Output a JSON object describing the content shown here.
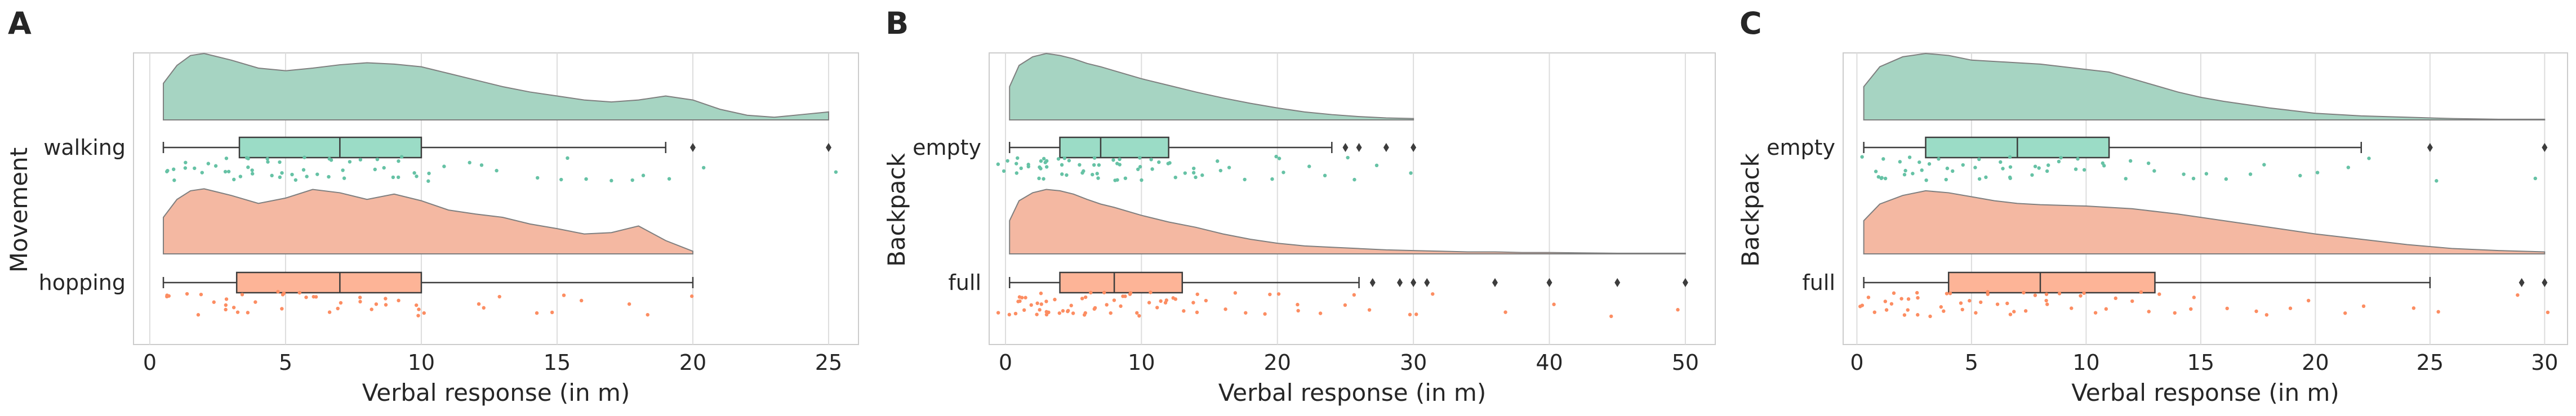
{
  "colors": {
    "group_1": "#66c2a5",
    "group_1_box": "#9bdcc6",
    "group_1_violin": "#a6d4c2",
    "group_2": "#fc8d62",
    "group_2_box": "#fdb497",
    "group_2_violin": "#f4b8a2",
    "grid": "#dddddd",
    "frame": "#cccccc",
    "whisker": "#3d3d3d"
  },
  "chart_data": [
    {
      "type": "raincloud",
      "panel_label": "A",
      "ylabel": "Movement",
      "xlabel": "Verbal response (in m)",
      "xlim": [
        -0.6,
        26.1
      ],
      "xticks": [
        0,
        5,
        10,
        15,
        20,
        25
      ],
      "categories": [
        "walking",
        "hopping"
      ],
      "series": [
        {
          "name": "walking",
          "color_key": "group_1",
          "box": {
            "whisker_low": 0.5,
            "q1": 3.3,
            "median": 7,
            "q3": 10,
            "whisker_high": 19
          },
          "outliers": [
            20,
            25
          ],
          "density": {
            "x": [
              0.5,
              1,
              1.5,
              2,
              3,
              4,
              5,
              6,
              7,
              8,
              9,
              10,
              11,
              12,
              13,
              14,
              15,
              16,
              17,
              18,
              19,
              20,
              21,
              22,
              23,
              24,
              25
            ],
            "y": [
              0.55,
              0.82,
              0.97,
              1.0,
              0.9,
              0.78,
              0.74,
              0.78,
              0.83,
              0.86,
              0.84,
              0.8,
              0.7,
              0.6,
              0.5,
              0.42,
              0.36,
              0.3,
              0.27,
              0.3,
              0.36,
              0.3,
              0.16,
              0.07,
              0.04,
              0.08,
              0.12
            ]
          },
          "points": [
            0.5,
            0.7,
            1,
            1,
            1.2,
            1.5,
            1.5,
            2,
            2,
            2.2,
            2.5,
            2.5,
            3,
            3,
            3,
            3.2,
            3.5,
            3.5,
            4,
            4,
            4,
            4.3,
            4.5,
            4.5,
            5,
            5,
            5,
            5.5,
            5.5,
            6,
            6,
            6,
            6.5,
            7,
            7,
            7,
            7,
            7.5,
            8,
            8,
            8,
            8.5,
            9,
            9,
            9,
            9.5,
            10,
            10,
            10,
            10,
            11,
            12,
            12,
            13,
            14,
            15,
            15,
            16,
            17,
            18,
            18,
            19,
            20,
            25
          ]
        },
        {
          "name": "hopping",
          "color_key": "group_2",
          "box": {
            "whisker_low": 0.5,
            "q1": 3.2,
            "median": 7,
            "q3": 10,
            "whisker_high": 20
          },
          "outliers": [],
          "density": {
            "x": [
              0.5,
              1,
              1.5,
              2,
              3,
              4,
              5,
              6,
              7,
              8,
              9,
              10,
              11,
              12,
              13,
              14,
              15,
              16,
              17,
              18,
              19,
              20
            ],
            "y": [
              0.55,
              0.82,
              0.95,
              0.98,
              0.88,
              0.76,
              0.84,
              0.97,
              0.92,
              0.82,
              0.9,
              0.8,
              0.66,
              0.6,
              0.55,
              0.45,
              0.38,
              0.3,
              0.32,
              0.42,
              0.2,
              0.04
            ]
          },
          "points": [
            0.5,
            1,
            1,
            1.2,
            1.5,
            2,
            2,
            2.5,
            3,
            3,
            3,
            3.5,
            3.5,
            4,
            4,
            4.5,
            5,
            5,
            5,
            5.5,
            6,
            6,
            6.5,
            7,
            7,
            7,
            7.5,
            8,
            8,
            8.5,
            9,
            9,
            9,
            10,
            10,
            10,
            10,
            12,
            12,
            13,
            14,
            15,
            15,
            16,
            18,
            18,
            20
          ]
        }
      ]
    },
    {
      "type": "raincloud",
      "panel_label": "B",
      "ylabel": "Backpack",
      "xlabel": "Verbal response (in m)",
      "xlim": [
        -1.2,
        52.2
      ],
      "xticks": [
        0,
        10,
        20,
        30,
        40,
        50
      ],
      "categories": [
        "empty",
        "full"
      ],
      "series": [
        {
          "name": "empty",
          "color_key": "group_1",
          "box": {
            "whisker_low": 0.3,
            "q1": 4,
            "median": 7,
            "q3": 12,
            "whisker_high": 24
          },
          "outliers": [
            25,
            26,
            28,
            30
          ],
          "density": {
            "x": [
              0.3,
              1,
              2,
              3,
              4,
              5,
              6,
              7,
              8,
              10,
              12,
              14,
              16,
              18,
              20,
              22,
              24,
              26,
              28,
              30
            ],
            "y": [
              0.5,
              0.82,
              0.95,
              1.0,
              0.97,
              0.92,
              0.85,
              0.8,
              0.74,
              0.62,
              0.52,
              0.42,
              0.33,
              0.25,
              0.18,
              0.12,
              0.08,
              0.05,
              0.03,
              0.02
            ]
          },
          "points": [
            0.3,
            0.5,
            0.5,
            1,
            1,
            1,
            1.5,
            1.5,
            2,
            2,
            2,
            2.5,
            2.5,
            3,
            3,
            3,
            3.5,
            3.5,
            4,
            4,
            4,
            4.5,
            5,
            5,
            5,
            5.5,
            6,
            6,
            6,
            6.5,
            7,
            7,
            7,
            7.5,
            8,
            8,
            8,
            8.5,
            9,
            9,
            9,
            10,
            10,
            10,
            10,
            11,
            11,
            12,
            12,
            12,
            13,
            13,
            14,
            14,
            15,
            15,
            16,
            17,
            18,
            19,
            20,
            20,
            21,
            22,
            24,
            25,
            26,
            28,
            30
          ]
        },
        {
          "name": "full",
          "color_key": "group_2",
          "box": {
            "whisker_low": 0.3,
            "q1": 4,
            "median": 8,
            "q3": 13,
            "whisker_high": 26
          },
          "outliers": [
            27,
            29,
            30,
            31,
            36,
            40,
            45,
            50
          ],
          "density": {
            "x": [
              0.3,
              1,
              2,
              3,
              4,
              5,
              6,
              7,
              8,
              10,
              12,
              14,
              16,
              18,
              20,
              22,
              24,
              26,
              28,
              30,
              32,
              34,
              36,
              38,
              40,
              45,
              50
            ],
            "y": [
              0.5,
              0.8,
              0.92,
              0.97,
              0.95,
              0.9,
              0.82,
              0.75,
              0.7,
              0.58,
              0.48,
              0.4,
              0.3,
              0.22,
              0.16,
              0.12,
              0.1,
              0.08,
              0.06,
              0.05,
              0.04,
              0.03,
              0.03,
              0.02,
              0.02,
              0.01,
              0.01
            ]
          },
          "points": [
            0.3,
            0.5,
            0.5,
            0.8,
            1,
            1,
            1,
            1.5,
            1.5,
            2,
            2,
            2,
            2.5,
            2.5,
            3,
            3,
            3,
            3.5,
            3.5,
            4,
            4,
            4,
            4.5,
            5,
            5,
            5,
            5.5,
            6,
            6,
            6,
            6.5,
            7,
            7,
            7,
            7.5,
            8,
            8,
            8,
            8.5,
            9,
            9,
            9,
            10,
            10,
            10,
            10,
            11,
            11,
            12,
            12,
            12,
            13,
            13,
            14,
            14,
            15,
            15,
            16,
            17,
            18,
            19,
            20,
            20,
            21,
            22,
            24,
            25,
            26,
            27,
            29,
            30,
            31,
            36,
            40,
            45,
            50
          ]
        }
      ]
    },
    {
      "type": "raincloud",
      "panel_label": "C",
      "ylabel": "Backpack",
      "xlabel": "Verbal response (in m)",
      "xlim": [
        -0.6,
        31.0
      ],
      "xticks": [
        0,
        5,
        10,
        15,
        20,
        25,
        30
      ],
      "categories": [
        "empty",
        "full"
      ],
      "series": [
        {
          "name": "empty",
          "color_key": "group_1",
          "box": {
            "whisker_low": 0.3,
            "q1": 3,
            "median": 7,
            "q3": 11,
            "whisker_high": 22
          },
          "outliers": [
            25,
            30
          ],
          "density": {
            "x": [
              0.3,
              1,
              2,
              3,
              4,
              5,
              6,
              7,
              8,
              9,
              10,
              11,
              12,
              13,
              14,
              15,
              16,
              18,
              20,
              22,
              24,
              26,
              28,
              30
            ],
            "y": [
              0.5,
              0.8,
              0.95,
              1.0,
              0.97,
              0.9,
              0.88,
              0.86,
              0.84,
              0.8,
              0.76,
              0.72,
              0.62,
              0.52,
              0.42,
              0.34,
              0.28,
              0.18,
              0.1,
              0.06,
              0.04,
              0.02,
              0.01,
              0.01
            ]
          },
          "points": [
            0.3,
            0.5,
            1,
            1,
            1,
            1.5,
            1.5,
            2,
            2,
            2,
            2.5,
            2.5,
            3,
            3,
            3,
            3.5,
            4,
            4,
            4,
            4.5,
            5,
            5,
            5,
            5.5,
            6,
            6,
            6,
            6.5,
            7,
            7,
            7,
            7.5,
            8,
            8,
            8,
            8.5,
            9,
            9,
            10,
            10,
            10,
            11,
            11,
            12,
            12,
            13,
            13,
            14,
            15,
            15,
            16,
            17,
            18,
            19,
            20,
            21,
            22,
            25,
            30
          ]
        },
        {
          "name": "full",
          "color_key": "group_2",
          "box": {
            "whisker_low": 0.3,
            "q1": 4,
            "median": 8,
            "q3": 13,
            "whisker_high": 25
          },
          "outliers": [
            29,
            30
          ],
          "density": {
            "x": [
              0.3,
              1,
              2,
              3,
              4,
              5,
              6,
              7,
              8,
              10,
              12,
              14,
              16,
              18,
              20,
              22,
              24,
              26,
              28,
              30
            ],
            "y": [
              0.5,
              0.75,
              0.88,
              0.95,
              0.92,
              0.86,
              0.8,
              0.76,
              0.74,
              0.72,
              0.68,
              0.6,
              0.5,
              0.4,
              0.3,
              0.22,
              0.14,
              0.08,
              0.05,
              0.03
            ]
          },
          "points": [
            0.3,
            0.5,
            0.5,
            1,
            1,
            1,
            1.5,
            1.5,
            2,
            2,
            2,
            2.5,
            2.5,
            3,
            3,
            3,
            3.5,
            4,
            4,
            4,
            4.5,
            5,
            5,
            5,
            5.5,
            6,
            6,
            6,
            6.5,
            7,
            7,
            7,
            7.5,
            8,
            8,
            8,
            8.5,
            9,
            9,
            10,
            10,
            10,
            11,
            11,
            12,
            12,
            13,
            13,
            14,
            15,
            15,
            16,
            17,
            18,
            19,
            20,
            21,
            22,
            24,
            25,
            29,
            30
          ]
        }
      ]
    }
  ]
}
